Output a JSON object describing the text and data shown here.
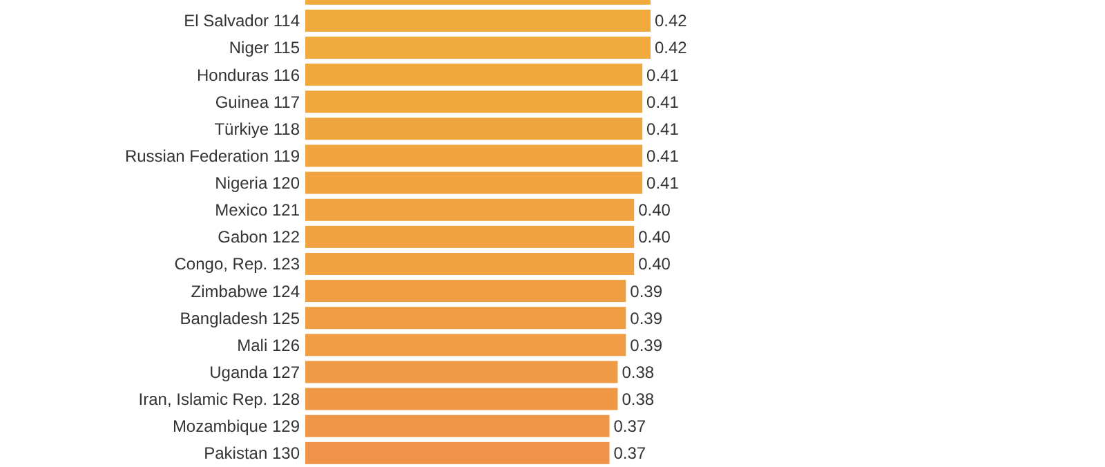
{
  "chart_data": {
    "type": "bar",
    "orientation": "horizontal",
    "categories": [
      null,
      "El Salvador 114",
      "Niger 115",
      "Honduras 116",
      "Guinea 117",
      "Türkiye 118",
      "Russian Federation 119",
      "Nigeria 120",
      "Mexico 121",
      "Gabon 122",
      "Congo, Rep. 123",
      "Zimbabwe 124",
      "Bangladesh 125",
      "Mali 126",
      "Uganda 127",
      "Iran, Islamic Rep. 128",
      "Mozambique 129",
      "Pakistan 130"
    ],
    "values": [
      0.42,
      0.42,
      0.42,
      0.41,
      0.41,
      0.41,
      0.41,
      0.41,
      0.4,
      0.4,
      0.4,
      0.39,
      0.39,
      0.39,
      0.38,
      0.38,
      0.37,
      0.37
    ],
    "value_labels": [
      null,
      "0.42",
      "0.42",
      "0.41",
      "0.41",
      "0.41",
      "0.41",
      "0.41",
      "0.40",
      "0.40",
      "0.40",
      "0.39",
      "0.39",
      "0.39",
      "0.38",
      "0.38",
      "0.37",
      "0.37"
    ],
    "colors": [
      "#f0aa3c",
      "#f0aa3c",
      "#f0a93d",
      "#f0a83d",
      "#f0a73e",
      "#f0a63e",
      "#f0a53f",
      "#f0a43f",
      "#f0a340",
      "#f0a240",
      "#f0a141",
      "#ef9f42",
      "#ef9e43",
      "#ef9c44",
      "#ef9a45",
      "#ef9846",
      "#ef9647",
      "#ef9449"
    ]
  }
}
